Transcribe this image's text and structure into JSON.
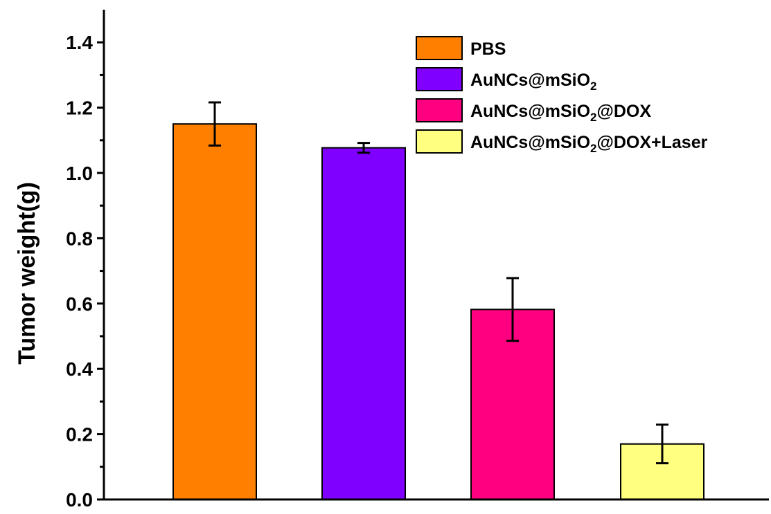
{
  "chart_data": {
    "type": "bar",
    "title": "",
    "xlabel": "",
    "ylabel": "Tumor weight(g)",
    "ylim": [
      0,
      1.5
    ],
    "yticks": [
      "0.0",
      "0.2",
      "0.4",
      "0.6",
      "0.8",
      "1.0",
      "1.2",
      "1.4"
    ],
    "grid": false,
    "legend_position": "top-right",
    "bars": [
      {
        "label_parts": [
          "AuNCs@mSiO",
          "2",
          "",
          "",
          ""
        ],
        "name": "PBS",
        "value": 1.15,
        "error": 0.066,
        "color": "#FF7F00"
      },
      {
        "label_parts": [
          "AuNCs@mSiO",
          "2",
          "",
          "",
          ""
        ],
        "name": "AuNCs@mSiO2",
        "value": 1.077,
        "error": 0.015,
        "color": "#7F00FF"
      },
      {
        "label_parts": [
          "AuNCs@mSiO",
          "2",
          "@DOX",
          "",
          ""
        ],
        "name": "AuNCs@mSiO2@DOX",
        "value": 0.582,
        "error": 0.096,
        "color": "#FF0080"
      },
      {
        "label_parts": [
          "AuNCs@mSiO",
          "2",
          "@DOX+Laser",
          "",
          ""
        ],
        "name": "AuNCs@mSiO2@DOX+Laser",
        "value": 0.17,
        "error": 0.059,
        "color": "#FFFF80"
      }
    ],
    "legend": [
      {
        "main": "PBS",
        "sub": "",
        "rest": ""
      },
      {
        "main": "AuNCs@mSiO",
        "sub": "2",
        "rest": ""
      },
      {
        "main": "AuNCs@mSiO",
        "sub": "2",
        "rest": "@DOX"
      },
      {
        "main": "AuNCs@mSiO",
        "sub": "2",
        "rest": "@DOX+Laser"
      }
    ]
  }
}
